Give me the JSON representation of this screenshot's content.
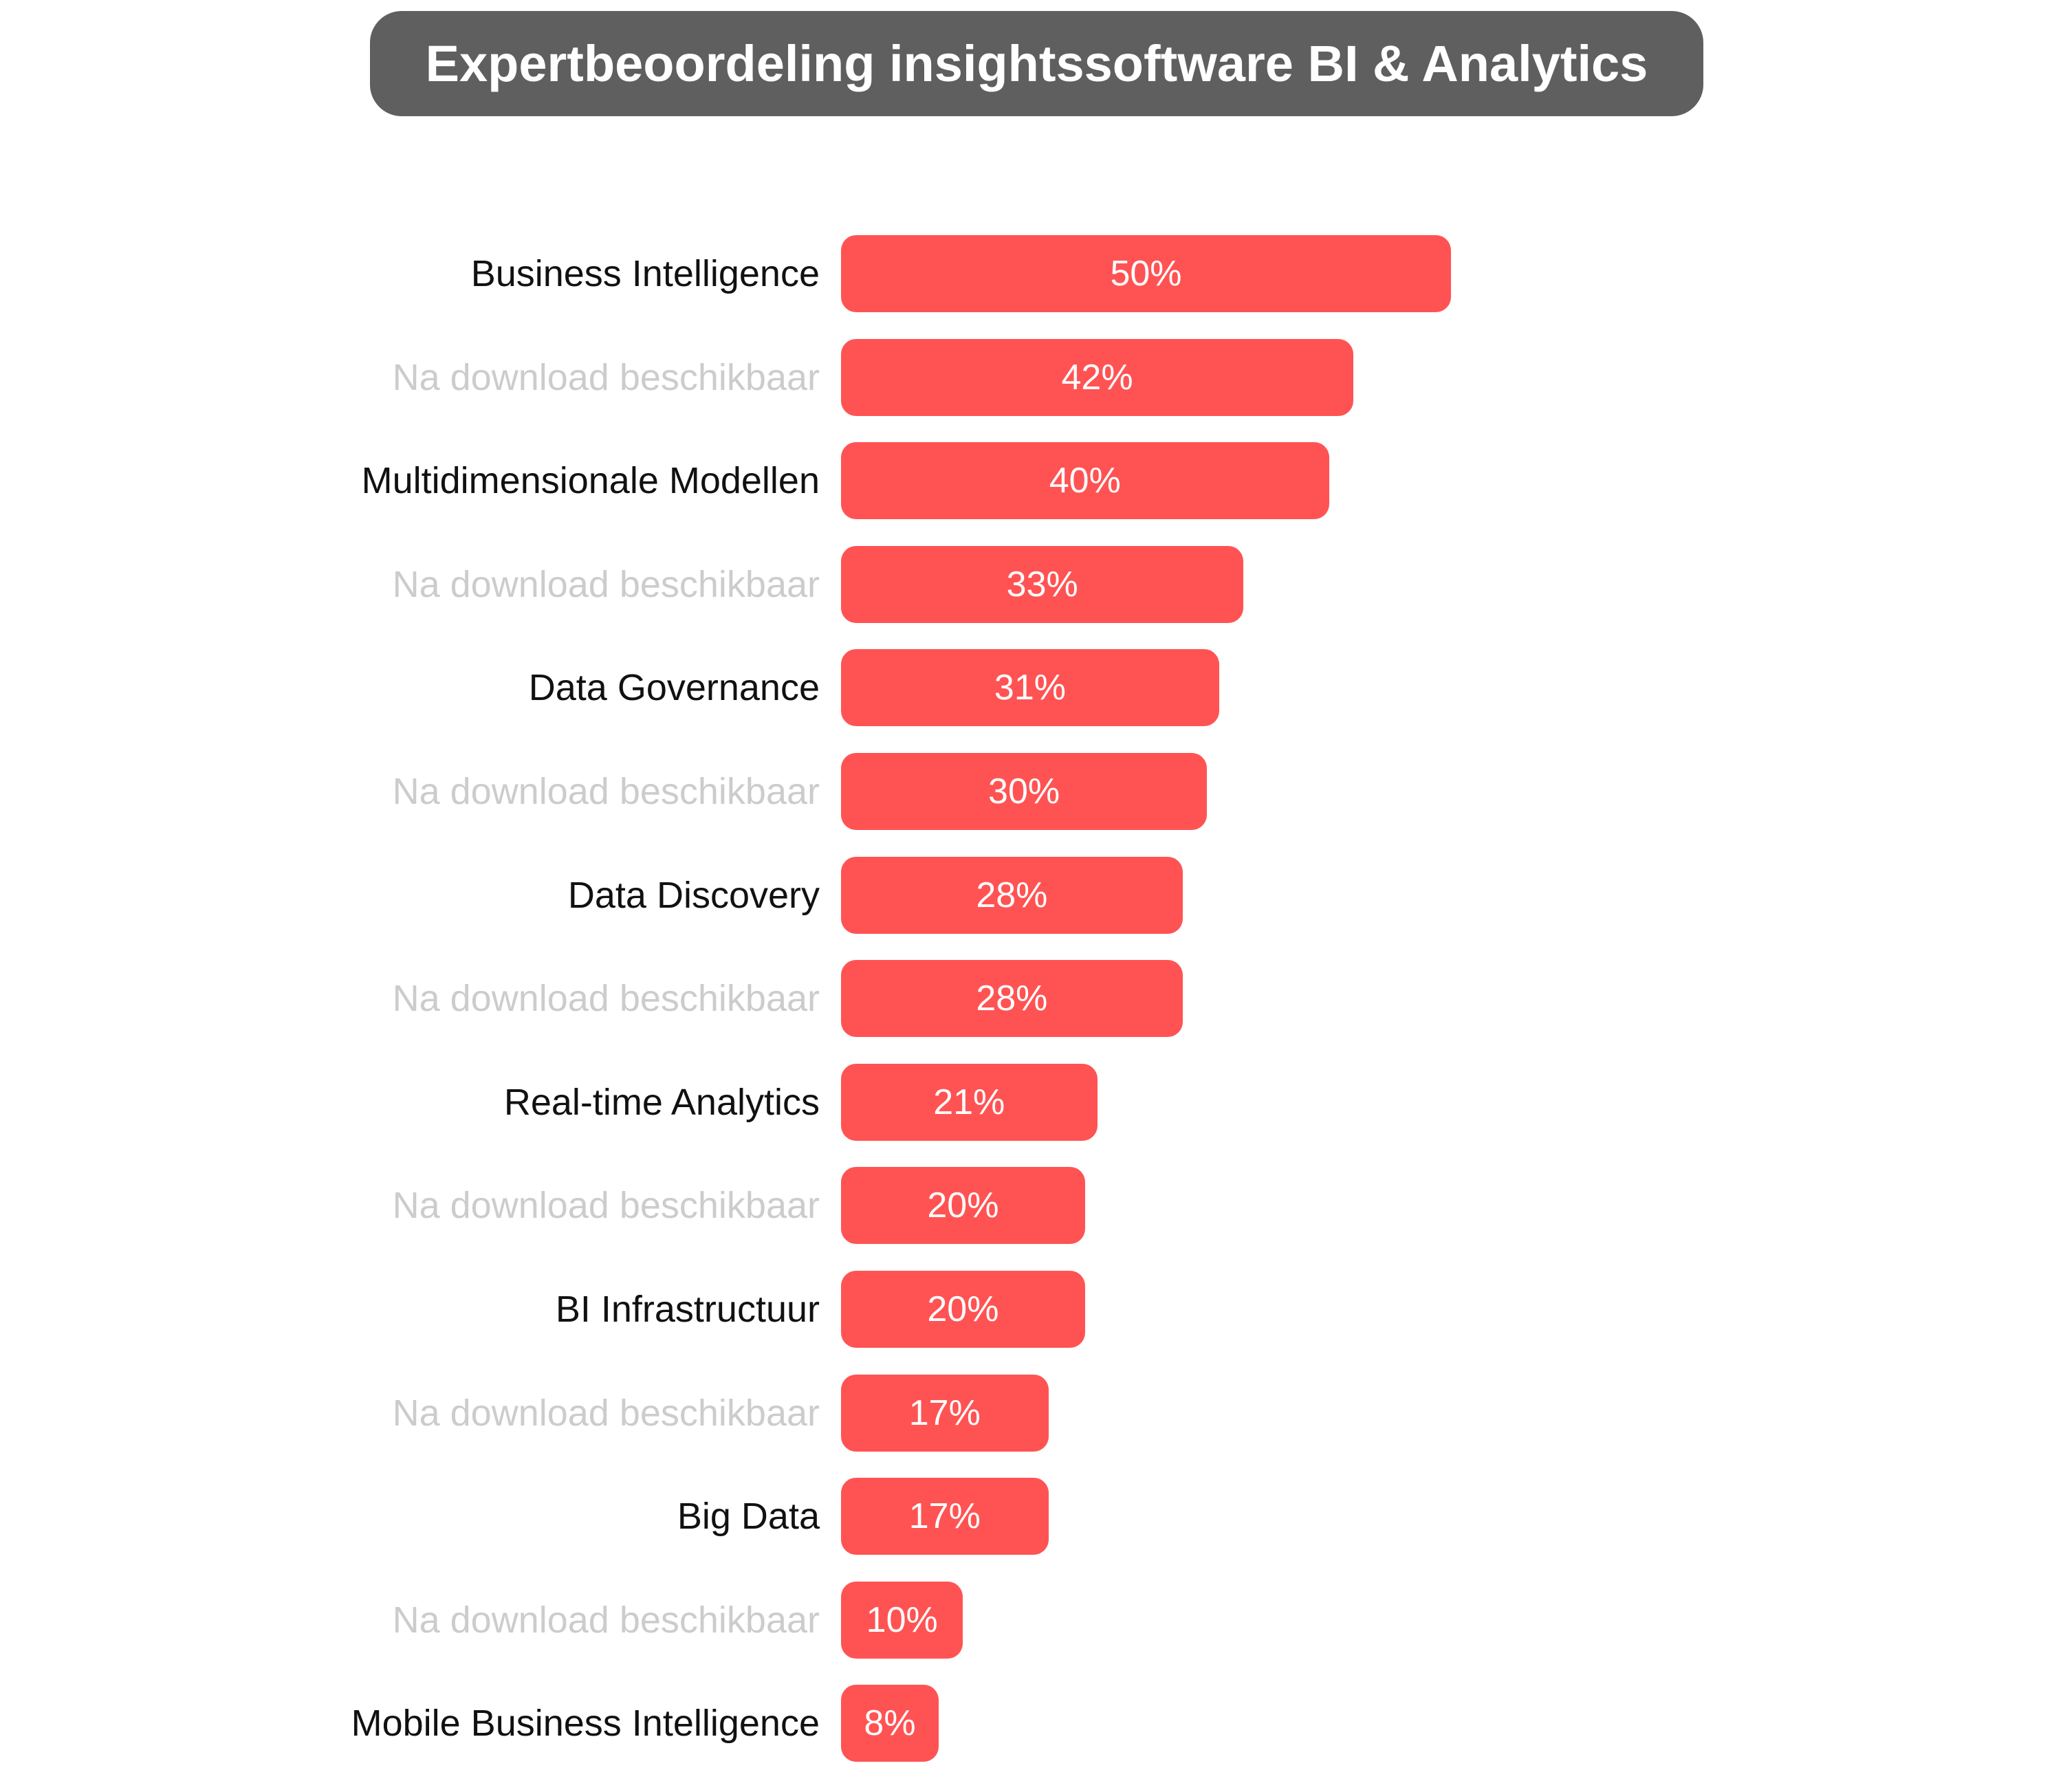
{
  "title": "Expertbeoordeling insightssoftware BI & Analytics",
  "colors": {
    "bar": "#ff5353",
    "label": "#111111",
    "label_hidden": "#cccccc",
    "title_bg": "#5f5f5f"
  },
  "chart_data": {
    "type": "bar",
    "orientation": "horizontal",
    "title": "Expertbeoordeling insightssoftware BI & Analytics",
    "categories": [
      "Business Intelligence",
      "Na download beschikbaar",
      "Multidimensionale Modellen",
      "Na download beschikbaar",
      "Data Governance",
      "Na download beschikbaar",
      "Data Discovery",
      "Na download beschikbaar",
      "Real-time Analytics",
      "Na download beschikbaar",
      "BI Infrastructuur",
      "Na download beschikbaar",
      "Big Data",
      "Na download beschikbaar",
      "Mobile Business Intelligence"
    ],
    "hidden": [
      false,
      true,
      false,
      true,
      false,
      true,
      false,
      true,
      false,
      true,
      false,
      true,
      false,
      true,
      false
    ],
    "values": [
      50,
      42,
      40,
      33,
      31,
      30,
      28,
      28,
      21,
      20,
      20,
      17,
      17,
      10,
      8
    ],
    "value_labels": [
      "50%",
      "42%",
      "40%",
      "33%",
      "31%",
      "30%",
      "28%",
      "28%",
      "21%",
      "20%",
      "20%",
      "17%",
      "17%",
      "10%",
      "8%"
    ],
    "xlim": [
      0,
      50
    ],
    "grid": false
  }
}
